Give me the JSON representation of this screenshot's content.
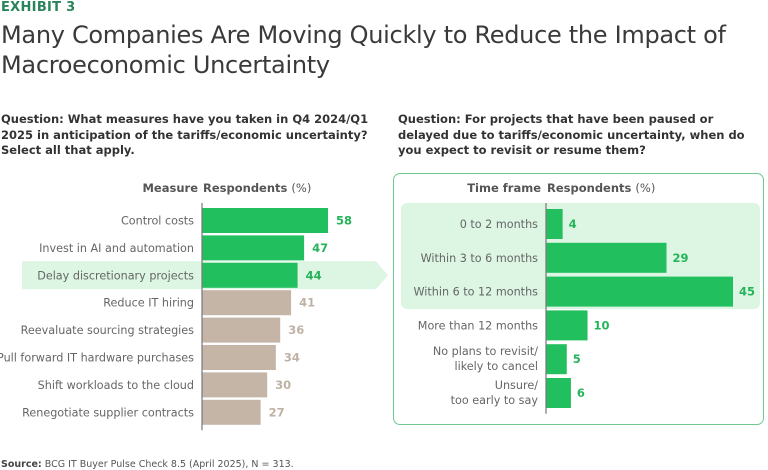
{
  "header": {
    "exhibit": "EXHIBIT 3",
    "title": "Many Companies Are Moving Quickly to Reduce the Impact of Macroeconomic Uncertainty"
  },
  "colors": {
    "accent": "#29845a",
    "highlight_bar": "#22bf5f",
    "muted_bar": "#c4b5a7",
    "highlight_band": "#dcf6e3",
    "panel_border": "#6dc991",
    "highlight_label": "#25b45a",
    "muted_label": "#bfb2a5"
  },
  "source": {
    "label": "Source:",
    "text": "BCG IT Buyer Pulse Check 8.5 (April 2025), N = 313."
  },
  "chart_data": [
    {
      "type": "bar",
      "orientation": "horizontal",
      "question": "Question: What measures have you taken in Q4 2024/Q1 2025 in anticipation of the tariffs/economic uncertainty? Select all that apply.",
      "category_header": "Measure",
      "value_header": "Respondents",
      "value_unit": "(%)",
      "categories": [
        "Control costs",
        "Invest in AI and automation",
        "Delay discretionary projects",
        "Reduce IT hiring",
        "Reevaluate sourcing strategies",
        "Pull forward IT hardware purchases",
        "Shift workloads to the cloud",
        "Renegotiate supplier contracts"
      ],
      "values": [
        58,
        47,
        44,
        41,
        36,
        34,
        30,
        27
      ],
      "highlighted": [
        true,
        true,
        true,
        false,
        false,
        false,
        false,
        false
      ],
      "callout_category": "Delay discretionary projects",
      "xlim": [
        0,
        60
      ]
    },
    {
      "type": "bar",
      "orientation": "horizontal",
      "question": "Question: For projects that have been paused or delayed due to tariffs/economic uncertainty, when do you expect to revisit or resume them?",
      "category_header": "Time frame",
      "value_header": "Respondents",
      "value_unit": "(%)",
      "categories": [
        [
          "0 to 2 months"
        ],
        [
          "Within 3 to 6 months"
        ],
        [
          "Within 6 to 12 months"
        ],
        [
          "More than 12 months"
        ],
        [
          "No plans to revisit/",
          "likely to cancel"
        ],
        [
          "Unsure/",
          "too early to say"
        ]
      ],
      "values": [
        4,
        29,
        45,
        10,
        5,
        6
      ],
      "highlighted": [
        true,
        true,
        true,
        true,
        true,
        true
      ],
      "band_categories": [
        "0 to 2 months",
        "Within 3 to 6 months",
        "Within 6 to 12 months"
      ],
      "xlim": [
        0,
        45
      ]
    }
  ]
}
